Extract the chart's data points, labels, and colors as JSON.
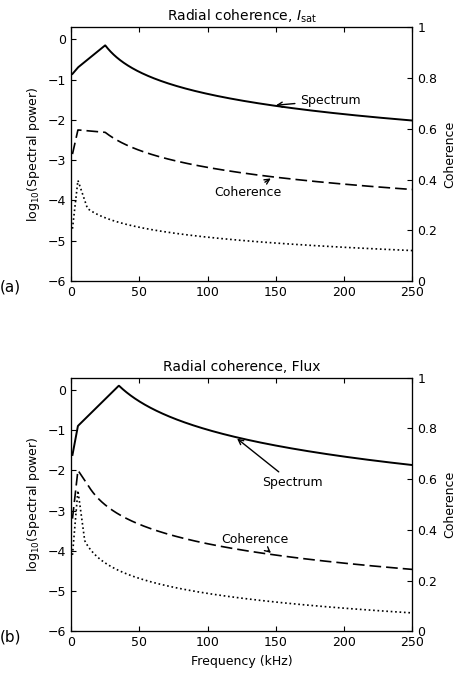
{
  "title_a": "Radial coherence, $I_{\\mathrm{sat}}$",
  "title_b": "Radial coherence, Flux",
  "xlabel": "Frequency (kHz)",
  "ylabel_left": "log$_{10}$(Spectral power)",
  "ylabel_right": "Coherence",
  "label_a": "(a)",
  "label_b": "(b)",
  "xlim": [
    0,
    250
  ],
  "ylim_left": [
    -6,
    0.3
  ],
  "ylim_right": [
    0,
    1
  ],
  "yticks_left": [
    -6,
    -5,
    -4,
    -3,
    -2,
    -1,
    0
  ],
  "yticks_right": [
    0,
    0.2,
    0.4,
    0.6,
    0.8,
    1
  ],
  "xticks": [
    0,
    50,
    100,
    150,
    200,
    250
  ],
  "figsize": [
    4.74,
    6.79
  ],
  "dpi": 100
}
